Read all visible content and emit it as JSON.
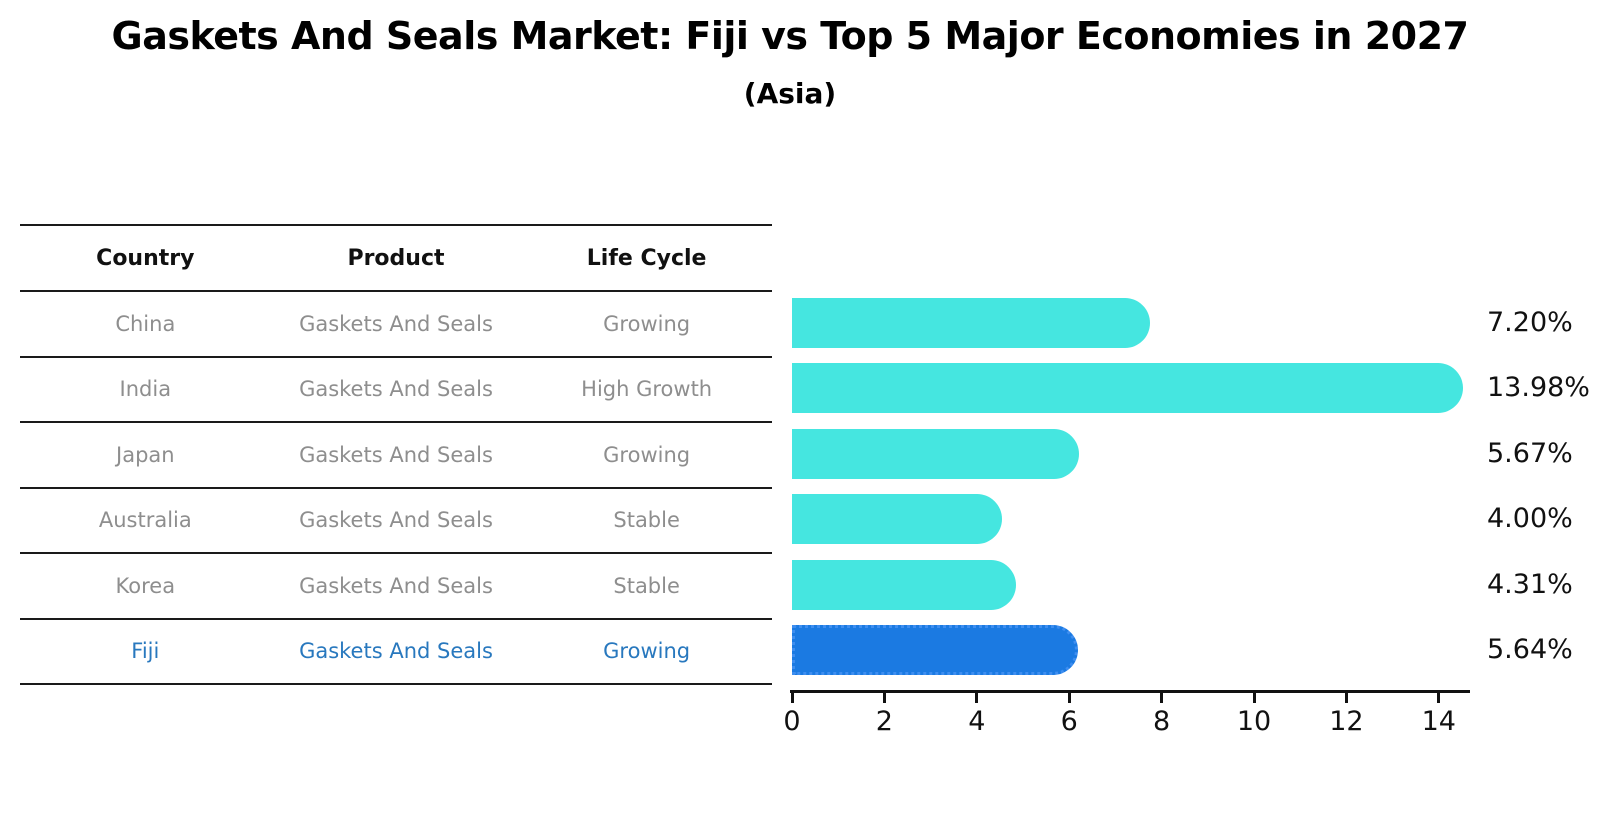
{
  "title": "Gaskets And Seals Market: Fiji vs Top 5 Major Economies in 2027",
  "subtitle": "(Asia)",
  "table": {
    "headers": [
      "Country",
      "Product",
      "Life Cycle"
    ],
    "rows": [
      {
        "country": "China",
        "product": "Gaskets And Seals",
        "life_cycle": "Growing",
        "highlight": false
      },
      {
        "country": "India",
        "product": "Gaskets And Seals",
        "life_cycle": "High Growth",
        "highlight": false
      },
      {
        "country": "Japan",
        "product": "Gaskets And Seals",
        "life_cycle": "Growing",
        "highlight": false
      },
      {
        "country": "Australia",
        "product": "Gaskets And Seals",
        "life_cycle": "Stable",
        "highlight": false
      },
      {
        "country": "Korea",
        "product": "Gaskets And Seals",
        "life_cycle": "Stable",
        "highlight": false
      },
      {
        "country": "Fiji",
        "product": "Gaskets And Seals",
        "life_cycle": "Growing",
        "highlight": true
      }
    ]
  },
  "chart_data": {
    "type": "bar",
    "orientation": "horizontal",
    "categories": [
      "China",
      "India",
      "Japan",
      "Australia",
      "Korea",
      "Fiji"
    ],
    "values": [
      7.2,
      13.98,
      5.67,
      4.0,
      4.31,
      5.64
    ],
    "value_labels": [
      "7.20%",
      "13.98%",
      "5.67%",
      "4.00%",
      "4.31%",
      "5.64%"
    ],
    "highlight_index": 5,
    "xlim": [
      0,
      14.7
    ],
    "xticks": [
      0,
      2,
      4,
      6,
      8,
      10,
      12,
      14
    ],
    "grid": false,
    "legend": null,
    "bar_color": "#45e6e0",
    "highlight_bar_color": "#1b7ae2",
    "highlight_text_color": "#2878be",
    "label_color": "#111111"
  }
}
